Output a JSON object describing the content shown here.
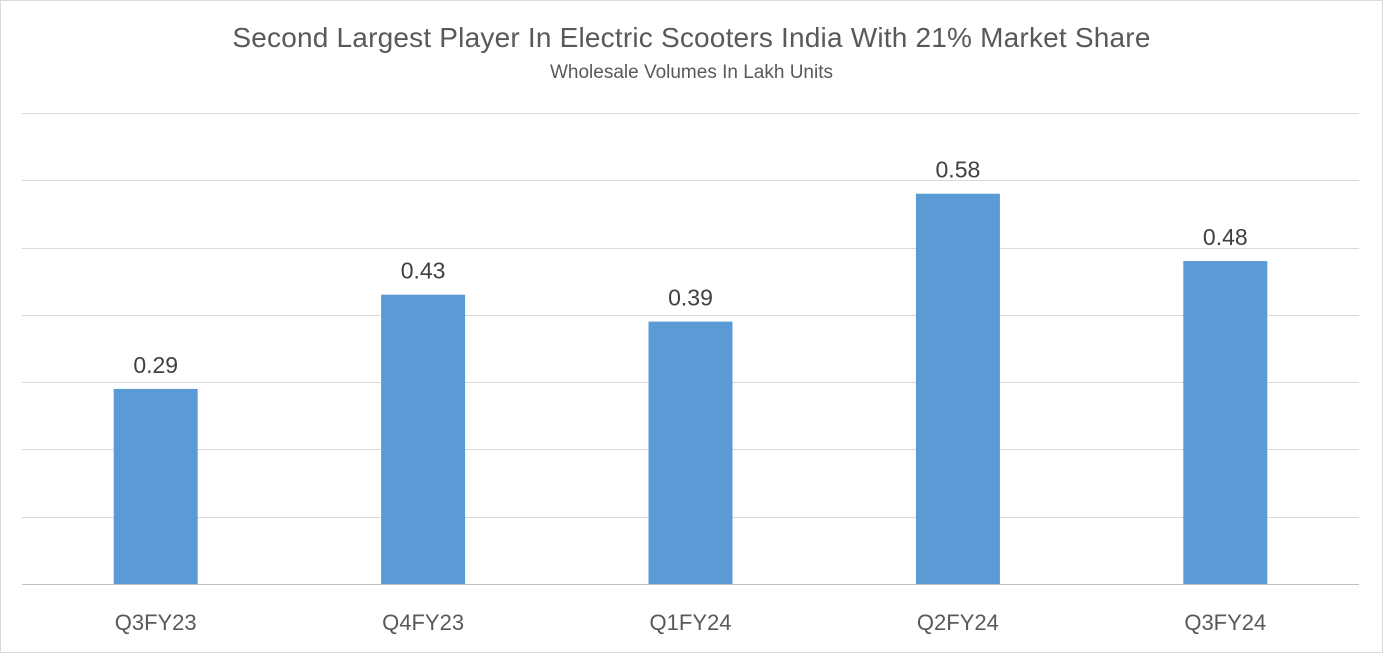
{
  "chart_data": {
    "type": "bar",
    "title": "Second Largest Player In Electric Scooters India With 21% Market Share",
    "subtitle": "Wholesale Volumes In Lakh Units",
    "categories": [
      "Q3FY23",
      "Q4FY23",
      "Q1FY24",
      "Q2FY24",
      "Q3FY24"
    ],
    "series": [
      {
        "values": [
          0.29,
          0.43,
          0.39,
          0.58,
          0.48
        ]
      }
    ],
    "ylim": [
      0,
      0.7
    ],
    "ytick_step": 0.1,
    "y_axis_labels_shown": false,
    "grid": true,
    "legend": "none",
    "data_labels": true,
    "colors": {
      "bar": "#5b9bd5",
      "text": "#595959",
      "grid": "#d9d9d9"
    }
  }
}
